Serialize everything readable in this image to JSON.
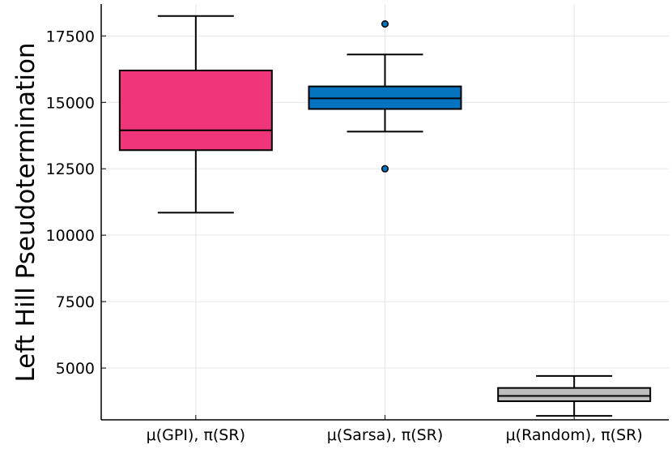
{
  "chart_data": {
    "type": "box",
    "title": "",
    "xlabel": "",
    "ylabel": "Left Hill Pseudotermination",
    "categories": [
      "μ(GPI), π(SR)",
      "μ(Sarsa), π(SR)",
      "μ(Random), π(SR)"
    ],
    "ylim": [
      3050,
      18700
    ],
    "yticks": [
      5000,
      7500,
      10000,
      12500,
      15000,
      17500
    ],
    "ytick_labels": [
      "5000",
      "7500",
      "10000",
      "12500",
      "15000",
      "17500"
    ],
    "grid": true,
    "legend": "none",
    "boxes": [
      {
        "category": "μ(GPI), π(SR)",
        "whisker_low": 10850,
        "q1": 13200,
        "median": 13950,
        "q3": 16200,
        "whisker_high": 18250,
        "outliers": [],
        "color": "#F0357A"
      },
      {
        "category": "μ(Sarsa), π(SR)",
        "whisker_low": 13900,
        "q1": 14750,
        "median": 15150,
        "q3": 15600,
        "whisker_high": 16800,
        "outliers": [
          17950,
          12500
        ],
        "color": "#0574C0"
      },
      {
        "category": "μ(Random), π(SR)",
        "whisker_low": 3200,
        "q1": 3750,
        "median": 3950,
        "q3": 4250,
        "whisker_high": 4700,
        "outliers": [],
        "color": "#BDBDBD"
      }
    ]
  }
}
